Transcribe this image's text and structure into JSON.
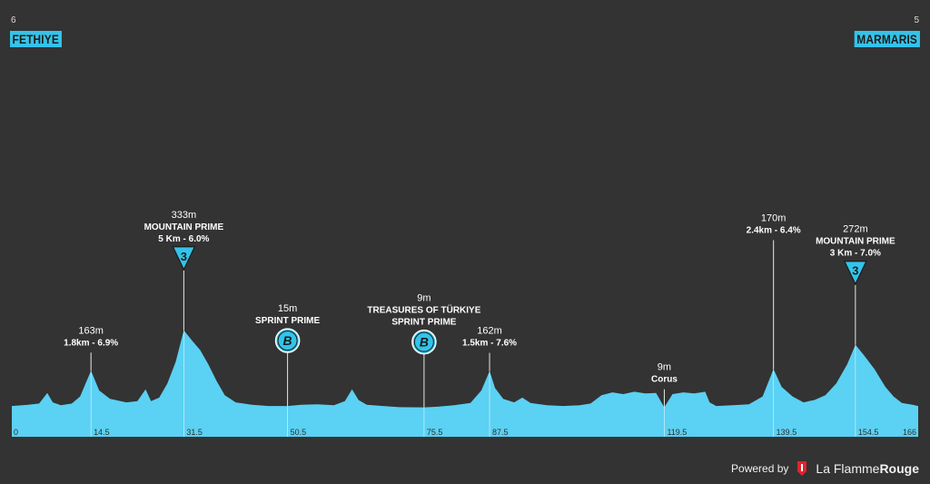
{
  "header": {
    "start_number": "6",
    "start_city": "FETHIYE",
    "finish_number": "5",
    "finish_city": "MARMARIS"
  },
  "footer": {
    "powered_by": "Powered by",
    "brand_light": "La Flamme",
    "brand_bold": "Rouge"
  },
  "colors": {
    "background": "#333333",
    "profile_fill": "#5bd1f3",
    "accent": "#34c3ea",
    "badge_text": "#1b1b1b"
  },
  "chart_data": {
    "type": "area",
    "x_unit": "km",
    "y_unit": "m",
    "xlim": [
      0,
      166
    ],
    "ylim": [
      0,
      340
    ],
    "profile": [
      [
        0,
        15
      ],
      [
        3,
        20
      ],
      [
        5,
        25
      ],
      [
        6.5,
        70
      ],
      [
        7.5,
        30
      ],
      [
        9,
        18
      ],
      [
        11,
        25
      ],
      [
        12.5,
        55
      ],
      [
        14.5,
        163
      ],
      [
        16,
        80
      ],
      [
        18,
        45
      ],
      [
        21,
        30
      ],
      [
        23,
        35
      ],
      [
        24.5,
        85
      ],
      [
        25.5,
        35
      ],
      [
        27,
        50
      ],
      [
        28.5,
        110
      ],
      [
        30,
        200
      ],
      [
        31.5,
        333
      ],
      [
        33,
        290
      ],
      [
        34.5,
        250
      ],
      [
        36,
        190
      ],
      [
        37.5,
        120
      ],
      [
        39,
        60
      ],
      [
        41,
        30
      ],
      [
        44,
        20
      ],
      [
        47,
        15
      ],
      [
        50.5,
        15
      ],
      [
        53,
        20
      ],
      [
        56,
        22
      ],
      [
        59,
        18
      ],
      [
        61,
        35
      ],
      [
        62.3,
        85
      ],
      [
        63.5,
        40
      ],
      [
        65,
        20
      ],
      [
        68,
        15
      ],
      [
        71,
        10
      ],
      [
        75.5,
        9
      ],
      [
        78,
        12
      ],
      [
        81,
        18
      ],
      [
        84,
        28
      ],
      [
        86,
        80
      ],
      [
        87.5,
        162
      ],
      [
        88.5,
        90
      ],
      [
        90,
        45
      ],
      [
        92,
        30
      ],
      [
        93.5,
        50
      ],
      [
        95,
        28
      ],
      [
        98,
        18
      ],
      [
        101,
        15
      ],
      [
        104,
        18
      ],
      [
        106,
        25
      ],
      [
        108,
        60
      ],
      [
        110,
        72
      ],
      [
        112,
        65
      ],
      [
        114,
        75
      ],
      [
        116,
        68
      ],
      [
        118,
        70
      ],
      [
        119.5,
        9
      ],
      [
        121,
        65
      ],
      [
        123,
        72
      ],
      [
        125,
        68
      ],
      [
        127,
        75
      ],
      [
        127.8,
        30
      ],
      [
        129,
        15
      ],
      [
        132,
        18
      ],
      [
        135,
        22
      ],
      [
        137.5,
        55
      ],
      [
        139.5,
        170
      ],
      [
        141,
        95
      ],
      [
        143,
        55
      ],
      [
        145,
        30
      ],
      [
        147,
        40
      ],
      [
        149,
        60
      ],
      [
        151,
        110
      ],
      [
        153,
        190
      ],
      [
        154.5,
        272
      ],
      [
        156,
        230
      ],
      [
        158,
        170
      ],
      [
        160,
        95
      ],
      [
        161.5,
        55
      ],
      [
        163,
        28
      ],
      [
        165,
        20
      ],
      [
        166,
        15
      ]
    ],
    "x_ticks": [
      "0",
      "14.5",
      "31.5",
      "50.5",
      "75.5",
      "87.5",
      "119.5",
      "139.5",
      "154.5",
      "166"
    ],
    "x_tick_values": [
      0,
      14.5,
      31.5,
      50.5,
      75.5,
      87.5,
      119.5,
      139.5,
      154.5,
      166
    ],
    "annotations": [
      {
        "km": 14.5,
        "lines": [
          "163m",
          "1.8km - 6.9%"
        ]
      },
      {
        "km": 31.5,
        "lines": [
          "333m",
          "MOUNTAIN PRIME",
          "5 Km - 6.0%"
        ],
        "badge": "kom",
        "badge_text": "3"
      },
      {
        "km": 50.5,
        "lines": [
          "15m",
          "SPRINT PRIME"
        ],
        "badge": "bonus",
        "badge_text": "B"
      },
      {
        "km": 75.5,
        "lines": [
          "9m",
          "TREASURES OF TÜRKIYE",
          "SPRINT PRIME"
        ],
        "badge": "bonus",
        "badge_text": "B"
      },
      {
        "km": 87.5,
        "lines": [
          "162m",
          "1.5km - 7.6%"
        ]
      },
      {
        "km": 119.5,
        "lines": [
          "9m",
          "Corus"
        ]
      },
      {
        "km": 139.5,
        "lines": [
          "170m",
          "2.4km - 6.4%"
        ]
      },
      {
        "km": 154.5,
        "lines": [
          "272m",
          "MOUNTAIN PRIME",
          "3 Km - 7.0%"
        ],
        "badge": "kom",
        "badge_text": "3"
      }
    ]
  }
}
